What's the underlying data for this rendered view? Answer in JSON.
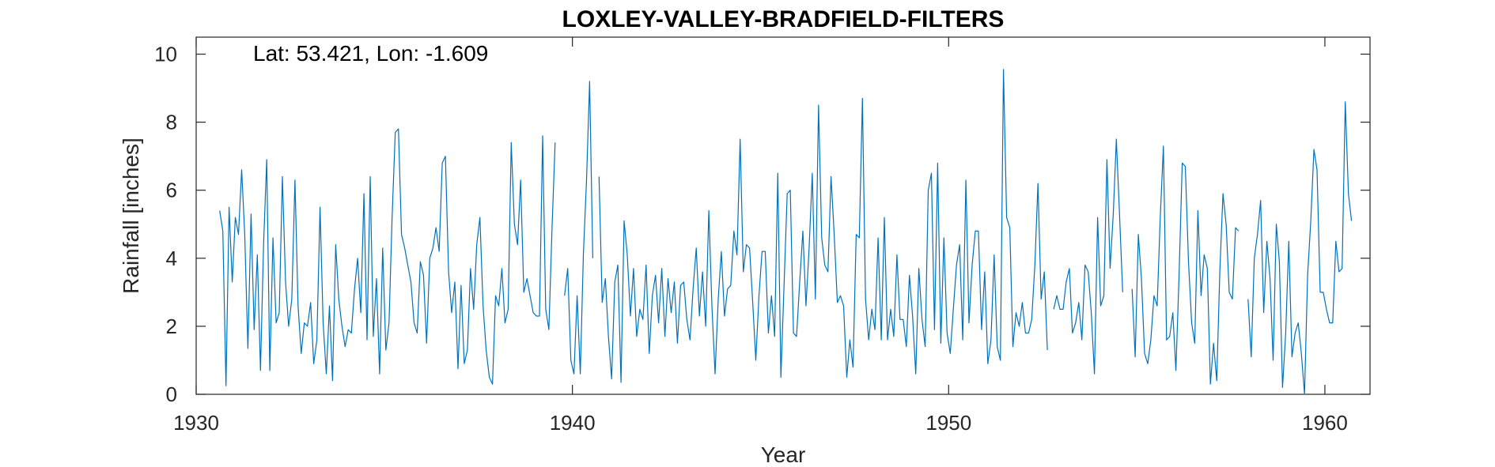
{
  "chart_data": {
    "type": "line",
    "title": "LOXLEY-VALLEY-BRADFIELD-FILTERS",
    "annotation": "Lat: 53.421, Lon: -1.609",
    "xlabel": "Year",
    "ylabel": "Rainfall [inches]",
    "xlim": [
      1930,
      1961.2
    ],
    "ylim": [
      0,
      10.5
    ],
    "x_ticks": [
      1930,
      1940,
      1950,
      1960
    ],
    "y_ticks": [
      0,
      2,
      4,
      6,
      8,
      10
    ],
    "grid": false,
    "line_color": "#0072BD",
    "series": [
      {
        "x_start": 1930.625,
        "x_step": 0.08333333,
        "values": [
          5.4,
          4.8,
          0.25,
          5.5,
          3.3,
          5.2,
          4.7,
          6.6,
          4.7,
          1.35,
          5.3,
          1.9,
          4.1,
          0.7,
          4.4,
          6.9,
          0.7,
          4.6,
          2.1,
          2.4,
          6.4,
          3.3,
          2.0,
          2.8,
          6.3,
          2.6,
          1.2,
          2.1,
          2.0,
          2.7,
          0.9,
          1.6,
          5.5,
          2.1,
          0.6,
          2.6,
          0.4,
          4.4,
          2.8,
          2.0,
          1.4,
          1.9,
          1.8,
          3.1,
          4.0,
          2.4,
          5.9,
          1.6,
          6.4,
          1.7,
          3.4,
          0.6,
          4.3,
          1.3,
          2.1,
          5.2,
          7.7,
          7.8,
          4.7,
          4.3,
          3.8,
          3.3,
          2.1,
          1.8,
          3.9,
          3.5,
          1.5,
          4.0,
          4.3,
          4.9,
          4.2,
          6.8,
          7.0,
          3.6,
          2.4,
          3.3,
          0.75,
          3.2,
          0.9,
          1.3,
          3.7,
          2.5,
          4.4,
          5.2,
          2.6,
          1.3,
          0.5,
          0.3,
          2.9,
          2.6,
          3.7,
          2.1,
          2.5,
          7.4,
          5.0,
          4.4,
          6.3,
          3.0,
          3.4,
          2.9,
          2.4,
          2.3,
          2.3,
          7.6,
          2.5,
          1.9,
          4.9,
          7.4,
          null,
          null,
          2.9,
          3.7,
          1.0,
          0.6,
          2.9,
          0.6,
          4.1,
          6.3,
          9.2,
          4.0,
          null,
          6.4,
          2.7,
          3.4,
          1.7,
          0.45,
          3.3,
          3.8,
          0.35,
          5.1,
          4.1,
          2.3,
          3.7,
          1.7,
          2.5,
          2.2,
          3.8,
          1.2,
          2.9,
          3.5,
          2.1,
          3.7,
          1.7,
          3.4,
          2.4,
          3.3,
          1.5,
          3.2,
          3.3,
          2.2,
          1.6,
          3.1,
          4.3,
          2.3,
          3.6,
          2.0,
          5.4,
          2.6,
          0.6,
          2.8,
          4.2,
          2.3,
          3.1,
          3.2,
          4.8,
          4.1,
          7.5,
          3.6,
          4.4,
          4.3,
          2.7,
          1.0,
          2.9,
          4.2,
          4.2,
          1.8,
          2.9,
          1.7,
          6.5,
          0.5,
          3.2,
          5.9,
          6.0,
          1.8,
          1.7,
          3.3,
          4.8,
          2.6,
          4.3,
          6.5,
          2.8,
          8.5,
          4.6,
          3.8,
          3.6,
          6.4,
          4.7,
          2.7,
          2.9,
          2.6,
          0.5,
          1.6,
          0.8,
          4.7,
          4.6,
          8.7,
          2.8,
          1.6,
          2.5,
          1.9,
          4.6,
          1.6,
          5.2,
          1.6,
          2.5,
          1.7,
          4.1,
          2.2,
          2.2,
          1.4,
          3.5,
          2.3,
          0.6,
          3.7,
          2.2,
          1.4,
          6.0,
          6.5,
          1.9,
          6.8,
          1.5,
          4.6,
          1.8,
          1.2,
          2.5,
          3.8,
          4.4,
          1.6,
          6.3,
          2.1,
          3.8,
          4.8,
          4.8,
          1.9,
          3.6,
          0.9,
          1.6,
          4.1,
          1.4,
          1.0,
          9.55,
          5.2,
          4.9,
          1.4,
          2.4,
          2.0,
          2.7,
          1.8,
          1.8,
          2.2,
          3.8,
          6.2,
          2.8,
          3.6,
          1.3,
          null,
          2.5,
          2.9,
          2.5,
          2.5,
          3.3,
          3.7,
          1.8,
          2.1,
          2.7,
          1.6,
          3.8,
          3.6,
          2.4,
          0.6,
          5.2,
          2.6,
          2.9,
          6.9,
          3.7,
          5.3,
          7.5,
          5.3,
          3.0,
          null,
          null,
          3.1,
          1.1,
          4.7,
          3.4,
          1.2,
          0.9,
          1.6,
          2.9,
          2.6,
          5.2,
          7.3,
          1.6,
          1.7,
          2.4,
          0.7,
          3.5,
          6.8,
          6.7,
          3.9,
          2.1,
          1.5,
          5.4,
          2.9,
          4.1,
          3.7,
          0.3,
          1.5,
          0.4,
          3.6,
          5.9,
          5.0,
          3.0,
          2.8,
          4.9,
          4.8,
          null,
          null,
          2.8,
          1.1,
          4.0,
          4.7,
          5.7,
          2.4,
          4.5,
          3.4,
          1.0,
          5.0,
          3.9,
          0.2,
          1.8,
          4.5,
          1.1,
          1.8,
          2.1,
          1.2,
          0.0,
          3.5,
          5.1,
          7.2,
          6.6,
          3.0,
          3.0,
          2.5,
          2.1,
          2.1,
          4.5,
          3.6,
          3.7,
          8.6,
          5.9,
          5.1
        ]
      }
    ]
  }
}
